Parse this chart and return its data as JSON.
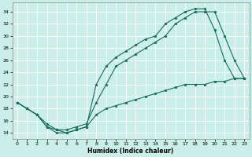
{
  "xlabel": "Humidex (Indice chaleur)",
  "xlim": [
    -0.5,
    23.5
  ],
  "ylim": [
    13,
    35.5
  ],
  "xticks": [
    0,
    1,
    2,
    3,
    4,
    5,
    6,
    7,
    8,
    9,
    10,
    11,
    12,
    13,
    14,
    15,
    16,
    17,
    18,
    19,
    20,
    21,
    22,
    23
  ],
  "yticks": [
    14,
    16,
    18,
    20,
    22,
    24,
    26,
    28,
    30,
    32,
    34
  ],
  "bg_color": "#caeee8",
  "line_color": "#1a6b5a",
  "grid_color": "#ffffff",
  "line1_x": [
    0,
    1,
    2,
    3,
    4,
    5,
    6,
    7,
    8,
    9,
    10,
    11,
    12,
    13,
    14,
    15,
    16,
    17,
    18,
    19,
    20,
    21,
    22,
    23
  ],
  "line1_y": [
    19,
    18,
    17,
    15,
    14,
    14,
    14.5,
    15,
    22,
    25,
    26.5,
    27.5,
    28.5,
    29.5,
    30,
    32,
    33,
    34,
    34.5,
    34.5,
    31,
    26,
    23,
    23
  ],
  "line2_x": [
    0,
    1,
    2,
    3,
    4,
    5,
    6,
    7,
    8,
    9,
    10,
    11,
    12,
    13,
    14,
    15,
    16,
    17,
    18,
    19,
    20,
    21,
    22,
    23
  ],
  "line2_y": [
    19,
    18,
    17,
    15,
    14.5,
    14.5,
    15,
    15.5,
    19,
    22,
    25,
    26,
    27,
    28,
    29,
    30,
    32,
    33,
    34,
    34,
    34,
    30,
    26,
    23
  ],
  "line3_x": [
    0,
    1,
    2,
    3,
    4,
    5,
    6,
    7,
    8,
    9,
    10,
    11,
    12,
    13,
    14,
    15,
    16,
    17,
    18,
    19,
    20,
    21,
    22,
    23
  ],
  "line3_y": [
    19,
    18,
    17,
    15.5,
    14.5,
    14,
    14.5,
    15,
    17,
    18,
    18.5,
    19,
    19.5,
    20,
    20.5,
    21,
    21.5,
    22,
    22,
    22,
    22.5,
    22.5,
    23,
    23
  ]
}
